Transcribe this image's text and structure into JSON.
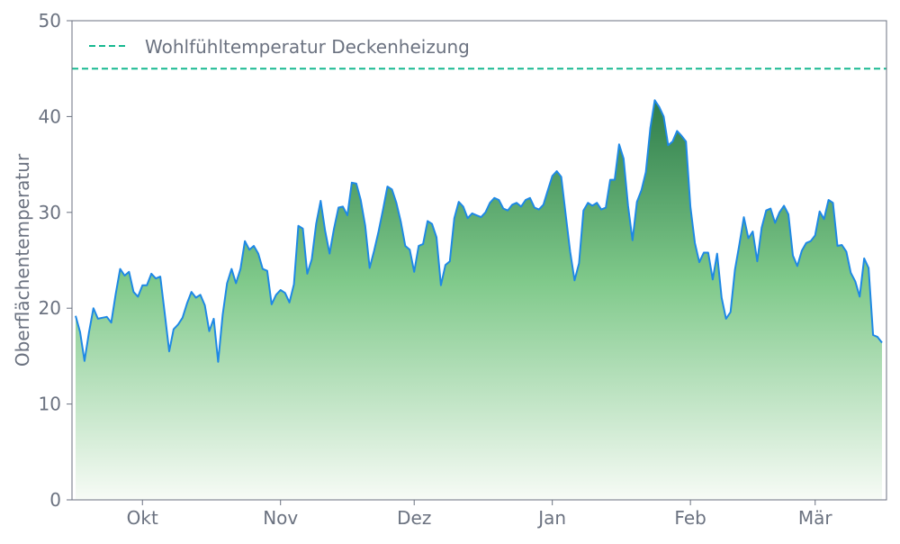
{
  "chart_data": {
    "type": "area",
    "title": "",
    "xlabel": "",
    "ylabel": "Oberflächentemperatur",
    "ylim": [
      0,
      50
    ],
    "yticks": [
      0,
      10,
      20,
      30,
      40,
      50
    ],
    "xticks": [
      {
        "label": "Okt",
        "day": 16
      },
      {
        "label": "Nov",
        "day": 47
      },
      {
        "label": "Dez",
        "day": 77
      },
      {
        "label": "Jan",
        "day": 108
      },
      {
        "label": "Feb",
        "day": 139
      },
      {
        "label": "Mär",
        "day": 167
      }
    ],
    "x_start_day": 1,
    "x_end_day": 182,
    "y": [
      19.2,
      17.5,
      14.5,
      17.5,
      20.0,
      18.9,
      19.0,
      19.1,
      18.5,
      21.5,
      24.1,
      23.4,
      23.8,
      21.7,
      21.2,
      22.4,
      22.4,
      23.6,
      23.1,
      23.3,
      19.5,
      15.5,
      17.8,
      18.3,
      19.0,
      20.5,
      21.7,
      21.1,
      21.4,
      20.3,
      17.6,
      18.9,
      14.4,
      19.3,
      22.6,
      24.1,
      22.6,
      24.1,
      27.0,
      26.1,
      26.5,
      25.7,
      24.1,
      23.9,
      20.4,
      21.4,
      21.9,
      21.6,
      20.6,
      22.5,
      28.6,
      28.3,
      23.6,
      25.1,
      28.8,
      31.2,
      28.1,
      25.7,
      28.3,
      30.5,
      30.6,
      29.7,
      33.1,
      33.0,
      31.3,
      28.6,
      24.2,
      26.0,
      28.0,
      30.3,
      32.7,
      32.4,
      31.0,
      29.0,
      26.5,
      26.1,
      23.8,
      26.5,
      26.7,
      29.1,
      28.8,
      27.4,
      22.4,
      24.5,
      24.9,
      29.4,
      31.1,
      30.6,
      29.4,
      29.9,
      29.7,
      29.5,
      30.0,
      31.0,
      31.5,
      31.3,
      30.4,
      30.2,
      30.8,
      31.0,
      30.6,
      31.3,
      31.5,
      30.5,
      30.3,
      30.8,
      32.3,
      33.8,
      34.3,
      33.7,
      29.8,
      25.9,
      22.9,
      24.7,
      30.2,
      31.0,
      30.7,
      31.0,
      30.3,
      30.5,
      33.4,
      33.4,
      37.1,
      35.6,
      30.7,
      27.1,
      31.1,
      32.3,
      34.2,
      38.8,
      41.7,
      41.0,
      40.0,
      37.0,
      37.4,
      38.5,
      38.0,
      37.4,
      30.6,
      26.8,
      24.8,
      25.8,
      25.8,
      23.0,
      25.7,
      21.1,
      18.9,
      19.6,
      24.0,
      26.7,
      29.5,
      27.3,
      28.0,
      24.9,
      28.4,
      30.2,
      30.4,
      28.9,
      30.0,
      30.7,
      29.8,
      25.5,
      24.4,
      26.0,
      26.8,
      27.0,
      27.6,
      30.1,
      29.3,
      31.3,
      31.0,
      26.5,
      26.6,
      25.9,
      23.7,
      22.8,
      21.2,
      25.2,
      24.2,
      17.2,
      17.0,
      16.4
    ],
    "series": [
      {
        "name": "Wohlfühltemperatur Deckenheizung",
        "type": "reference-line",
        "value": 45
      }
    ],
    "legend_position": "top-left",
    "grid": false
  },
  "colors": {
    "line": "#1e88e5",
    "reference": "#17b890",
    "fill_top": "#2e7d4a",
    "fill_mid": "#7fc98a",
    "fill_bottom": "#f7fbf6",
    "axis": "#6b7280"
  }
}
